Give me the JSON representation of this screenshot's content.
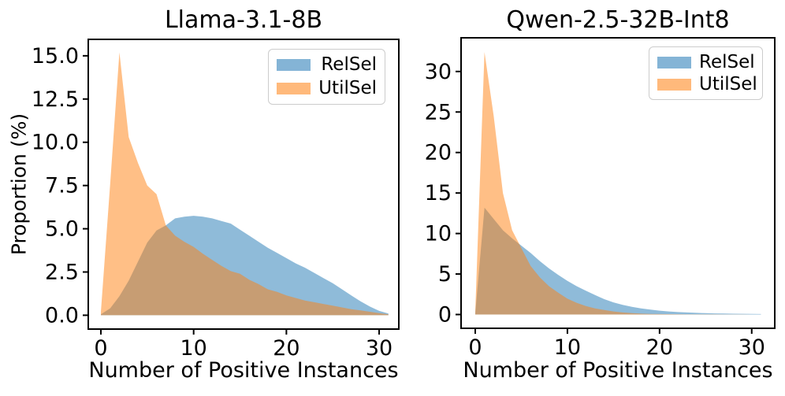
{
  "figure": {
    "background": "#ffffff"
  },
  "chart_data": [
    {
      "type": "area",
      "title": "Llama-3.1-8B",
      "xlabel": "Number of Positive Instances",
      "ylabel": "Proportion (%)",
      "grid": false,
      "legend_position": "upper right",
      "xlim": [
        -1.36,
        32.12
      ],
      "ylim": [
        -0.8,
        15.95
      ],
      "xtick_values": [
        0,
        10,
        20,
        30
      ],
      "xtick_labels": [
        "0",
        "10",
        "20",
        "30"
      ],
      "ytick_values": [
        0,
        2.5,
        5,
        7.5,
        10,
        12.5,
        15
      ],
      "ytick_labels": [
        "0.0",
        "2.5",
        "5.0",
        "7.5",
        "10.0",
        "12.5",
        "15.0"
      ],
      "x": [
        0,
        1,
        2,
        3,
        4,
        5,
        6,
        7,
        8,
        9,
        10,
        11,
        12,
        13,
        14,
        15,
        16,
        17,
        18,
        19,
        20,
        21,
        22,
        23,
        24,
        25,
        26,
        27,
        28,
        29,
        30,
        31
      ],
      "series": [
        {
          "name": "RelSel",
          "color": "#1f77b4",
          "fill_opacity": 0.5,
          "values": [
            0.05,
            0.4,
            1.1,
            2.0,
            3.1,
            4.2,
            4.9,
            5.2,
            5.6,
            5.7,
            5.75,
            5.7,
            5.6,
            5.45,
            5.3,
            4.95,
            4.6,
            4.25,
            3.9,
            3.6,
            3.3,
            3.0,
            2.75,
            2.45,
            2.15,
            1.85,
            1.5,
            1.15,
            0.8,
            0.5,
            0.25,
            0.1
          ]
        },
        {
          "name": "UtilSel",
          "color": "#ff7f0e",
          "fill_opacity": 0.5,
          "values": [
            0.2,
            7.6,
            15.2,
            10.3,
            8.8,
            7.5,
            7.0,
            5.2,
            4.6,
            4.25,
            3.95,
            3.55,
            3.2,
            2.85,
            2.55,
            2.4,
            2.05,
            1.8,
            1.5,
            1.35,
            1.15,
            1.0,
            0.85,
            0.75,
            0.65,
            0.55,
            0.45,
            0.35,
            0.28,
            0.2,
            0.12,
            0.05
          ]
        }
      ]
    },
    {
      "type": "area",
      "title": "Qwen-2.5-32B-Int8",
      "xlabel": "Number of Positive Instances",
      "ylabel": "",
      "grid": false,
      "legend_position": "upper right",
      "xlim": [
        -1.54,
        32.5
      ],
      "ylim": [
        -1.7,
        34.16
      ],
      "xtick_values": [
        0,
        10,
        20,
        30
      ],
      "xtick_labels": [
        "0",
        "10",
        "20",
        "30"
      ],
      "ytick_values": [
        0,
        5,
        10,
        15,
        20,
        25,
        30
      ],
      "ytick_labels": [
        "0",
        "5",
        "10",
        "15",
        "20",
        "25",
        "30"
      ],
      "x": [
        0,
        1,
        2,
        3,
        4,
        5,
        6,
        7,
        8,
        9,
        10,
        11,
        12,
        13,
        14,
        15,
        16,
        17,
        18,
        19,
        20,
        21,
        22,
        23,
        24,
        25,
        26,
        27,
        28,
        29,
        30,
        31
      ],
      "series": [
        {
          "name": "RelSel",
          "color": "#1f77b4",
          "fill_opacity": 0.5,
          "values": [
            0.15,
            13.2,
            11.8,
            10.4,
            9.4,
            8.5,
            7.6,
            6.6,
            5.7,
            4.9,
            4.15,
            3.5,
            2.95,
            2.4,
            1.9,
            1.5,
            1.2,
            0.95,
            0.75,
            0.6,
            0.48,
            0.38,
            0.3,
            0.25,
            0.2,
            0.17,
            0.14,
            0.12,
            0.1,
            0.09,
            0.08,
            0.06
          ]
        },
        {
          "name": "UtilSel",
          "color": "#ff7f0e",
          "fill_opacity": 0.5,
          "values": [
            0.3,
            32.4,
            24.5,
            15.0,
            10.4,
            8.2,
            6.0,
            4.6,
            3.5,
            2.7,
            1.95,
            1.45,
            1.05,
            0.75,
            0.55,
            0.38,
            0.25,
            0.17,
            0.11,
            0.08,
            0.06,
            0.05,
            0.04,
            0.03,
            0.03,
            0.02,
            0.02,
            0.01,
            0.01,
            0.01,
            0.0,
            0.0
          ]
        }
      ]
    }
  ]
}
